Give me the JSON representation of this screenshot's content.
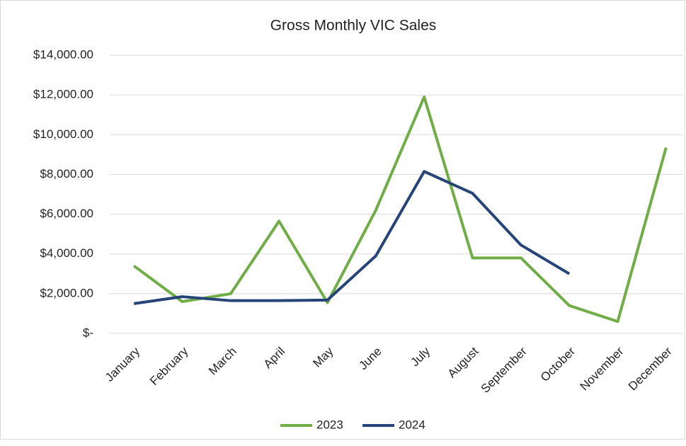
{
  "chart_data": {
    "type": "line",
    "title": "Gross Monthly VIC Sales",
    "categories": [
      "January",
      "February",
      "March",
      "April",
      "May",
      "June",
      "July",
      "August",
      "September",
      "October",
      "November",
      "December"
    ],
    "series": [
      {
        "name": "2023",
        "color": "#70ad47",
        "values": [
          3400,
          1600,
          2000,
          5650,
          1550,
          6200,
          11900,
          3800,
          3800,
          1400,
          600,
          9350
        ]
      },
      {
        "name": "2024",
        "color": "#264478",
        "values": [
          1500,
          1850,
          1650,
          1650,
          1680,
          3900,
          8150,
          7050,
          4450,
          3000,
          null,
          null
        ]
      }
    ],
    "ylim": [
      0,
      14000
    ],
    "yticks": [
      {
        "value": 0,
        "label": "$-"
      },
      {
        "value": 2000,
        "label": "$2,000.00"
      },
      {
        "value": 4000,
        "label": "$4,000.00"
      },
      {
        "value": 6000,
        "label": "$6,000.00"
      },
      {
        "value": 8000,
        "label": "$8,000.00"
      },
      {
        "value": 10000,
        "label": "$10,000.00"
      },
      {
        "value": 12000,
        "label": "$12,000.00"
      },
      {
        "value": 14000,
        "label": "$14,000.00"
      }
    ],
    "grid": true,
    "legend": "bottom"
  }
}
